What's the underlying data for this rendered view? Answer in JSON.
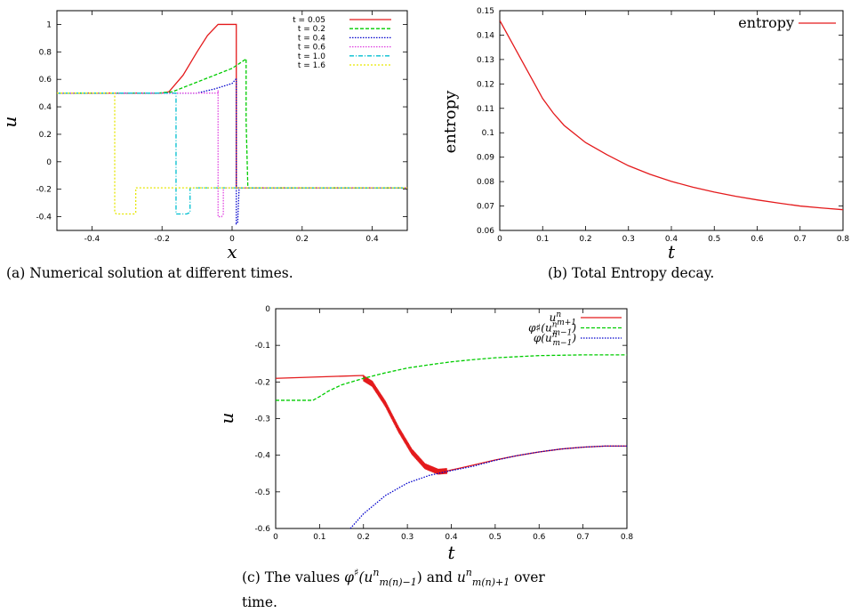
{
  "colors": {
    "red": "#e41a1c",
    "green": "#00cc00",
    "blue": "#0000cc",
    "magenta": "#e040e0",
    "cyan": "#00bfd0",
    "yellow": "#e6e600"
  },
  "captions": {
    "a": "(a)  Numerical solution at different times.",
    "b": "(b)  Total Entropy decay.",
    "c_prefix": "(c)  The values ",
    "c_phi": "φ",
    "c_sharp": "♯",
    "c_u1": "(u",
    "c_n1": "n",
    "c_sub1": "m(n)−1",
    "c_mid": ")  and  ",
    "c_u2": "u",
    "c_n2": "n",
    "c_sub2": "m(n)+1",
    "c_suffix": "  over",
    "c_line2": "time."
  },
  "chart_data": [
    {
      "id": "a",
      "type": "line",
      "xlabel": "x",
      "ylabel": "u",
      "xlim": [
        -0.5,
        0.5
      ],
      "ylim": [
        -0.5,
        1.1
      ],
      "xticks": [
        "-0.4",
        "-0.2",
        "0",
        "0.2",
        "0.4"
      ],
      "xtick_values": [
        -0.4,
        -0.2,
        0,
        0.2,
        0.4
      ],
      "yticks": [
        "-0.4",
        "-0.2",
        "0",
        "0.2",
        "0.4",
        "0.6",
        "0.8",
        "1"
      ],
      "ytick_values": [
        -0.4,
        -0.2,
        0,
        0.2,
        0.4,
        0.6,
        0.8,
        1
      ],
      "legend_position": "top-right",
      "series": [
        {
          "name": "t = 0.05",
          "color": "red",
          "dash": "",
          "x": [
            -0.5,
            -0.2,
            -0.18,
            -0.14,
            -0.1,
            -0.07,
            -0.04,
            -0.02,
            0.0,
            0.012,
            0.012,
            0.5
          ],
          "y": [
            0.5,
            0.5,
            0.51,
            0.63,
            0.8,
            0.92,
            1.0,
            1.0,
            1.0,
            1.0,
            -0.19,
            -0.19
          ]
        },
        {
          "name": "t = 0.2",
          "color": "green",
          "dash": "4,2",
          "x": [
            -0.5,
            -0.21,
            -0.17,
            -0.1,
            0.0,
            0.035,
            0.04,
            0.04,
            0.045,
            0.5
          ],
          "y": [
            0.5,
            0.5,
            0.51,
            0.58,
            0.68,
            0.74,
            0.75,
            0.3,
            -0.19,
            -0.19
          ]
        },
        {
          "name": "t = 0.4",
          "color": "blue",
          "dash": "1.5,1.5",
          "x": [
            -0.5,
            -0.1,
            -0.05,
            0.0,
            0.01,
            0.012,
            0.012,
            0.016,
            0.02,
            0.5
          ],
          "y": [
            0.5,
            0.5,
            0.53,
            0.57,
            0.6,
            0.6,
            -0.45,
            -0.44,
            -0.19,
            -0.19
          ]
        },
        {
          "name": "t = 0.6",
          "color": "magenta",
          "dash": "1.5,1.5",
          "x": [
            -0.5,
            -0.04,
            -0.04,
            -0.04,
            -0.03,
            -0.025,
            -0.025,
            0.5
          ],
          "y": [
            0.5,
            0.5,
            0.52,
            -0.4,
            -0.4,
            -0.38,
            -0.19,
            -0.19
          ]
        },
        {
          "name": "t = 1.0",
          "color": "cyan",
          "dash": "5,2,1,2",
          "x": [
            -0.5,
            -0.16,
            -0.16,
            -0.155,
            -0.13,
            -0.12,
            -0.12,
            0.5
          ],
          "y": [
            0.5,
            0.5,
            -0.38,
            -0.38,
            -0.38,
            -0.37,
            -0.19,
            -0.19
          ]
        },
        {
          "name": "t = 1.6",
          "color": "yellow",
          "dash": "2,2",
          "x": [
            -0.5,
            -0.335,
            -0.335,
            -0.33,
            -0.28,
            -0.275,
            -0.275,
            0.5
          ],
          "y": [
            0.5,
            0.5,
            -0.37,
            -0.38,
            -0.38,
            -0.37,
            -0.19,
            -0.19
          ]
        }
      ]
    },
    {
      "id": "b",
      "type": "line",
      "xlabel": "t",
      "ylabel": "entropy",
      "xlim": [
        0,
        0.8
      ],
      "ylim": [
        0.06,
        0.15
      ],
      "xticks": [
        "0",
        "0.1",
        "0.2",
        "0.3",
        "0.4",
        "0.5",
        "0.6",
        "0.7",
        "0.8"
      ],
      "xtick_values": [
        0,
        0.1,
        0.2,
        0.3,
        0.4,
        0.5,
        0.6,
        0.7,
        0.8
      ],
      "yticks": [
        "0.06",
        "0.07",
        "0.08",
        "0.09",
        "0.1",
        "0.11",
        "0.12",
        "0.13",
        "0.14",
        "0.15"
      ],
      "ytick_values": [
        0.06,
        0.07,
        0.08,
        0.09,
        0.1,
        0.11,
        0.12,
        0.13,
        0.14,
        0.15
      ],
      "legend_position": "top-right",
      "series": [
        {
          "name": "entropy",
          "color": "red",
          "dash": "",
          "x": [
            0,
            0.025,
            0.05,
            0.075,
            0.1,
            0.125,
            0.15,
            0.2,
            0.25,
            0.3,
            0.35,
            0.4,
            0.45,
            0.5,
            0.55,
            0.6,
            0.65,
            0.7,
            0.75,
            0.8
          ],
          "y": [
            0.146,
            0.138,
            0.13,
            0.122,
            0.114,
            0.108,
            0.103,
            0.096,
            0.091,
            0.0865,
            0.083,
            0.0801,
            0.0777,
            0.0757,
            0.074,
            0.0725,
            0.0712,
            0.07,
            0.0692,
            0.0685
          ]
        }
      ]
    },
    {
      "id": "c",
      "type": "line",
      "xlabel": "t",
      "ylabel": "u",
      "xlim": [
        0,
        0.8
      ],
      "ylim": [
        -0.6,
        0
      ],
      "xticks": [
        "0",
        "0.1",
        "0.2",
        "0.3",
        "0.4",
        "0.5",
        "0.6",
        "0.7",
        "0.8"
      ],
      "xtick_values": [
        0,
        0.1,
        0.2,
        0.3,
        0.4,
        0.5,
        0.6,
        0.7,
        0.8
      ],
      "yticks": [
        "-0.6",
        "-0.5",
        "-0.4",
        "-0.3",
        "-0.2",
        "-0.1",
        "0"
      ],
      "ytick_values": [
        -0.6,
        -0.5,
        -0.4,
        -0.3,
        -0.2,
        -0.1,
        0
      ],
      "legend_position": "top-right",
      "legend_labels": [
        {
          "base": "u",
          "sup": "n",
          "sub": "m+1"
        },
        {
          "base": "φ♯(u",
          "sup": "n",
          "sub": "m−1",
          "close": ")"
        },
        {
          "base": "φ(u",
          "sup": "n",
          "sub": "m−1",
          "close": ")"
        }
      ],
      "series": [
        {
          "name": "u^n_{m+1}",
          "color": "red",
          "dash": "",
          "noisy": true,
          "x": [
            0,
            0.2,
            0.22,
            0.25,
            0.28,
            0.31,
            0.34,
            0.37,
            0.39,
            0.42,
            0.45,
            0.5,
            0.55,
            0.6,
            0.65,
            0.7,
            0.75,
            0.8
          ],
          "y": [
            -0.19,
            -0.19,
            -0.205,
            -0.26,
            -0.33,
            -0.39,
            -0.43,
            -0.445,
            -0.443,
            -0.435,
            -0.427,
            -0.413,
            -0.401,
            -0.391,
            -0.383,
            -0.378,
            -0.375,
            -0.375
          ]
        },
        {
          "name": "φ♯(u^n_{m−1})",
          "color": "green",
          "dash": "4,2",
          "x": [
            0,
            0.085,
            0.1,
            0.12,
            0.15,
            0.2,
            0.25,
            0.3,
            0.35,
            0.4,
            0.45,
            0.5,
            0.55,
            0.6,
            0.65,
            0.7,
            0.75,
            0.8
          ],
          "y": [
            -0.25,
            -0.25,
            -0.24,
            -0.225,
            -0.208,
            -0.19,
            -0.175,
            -0.162,
            -0.153,
            -0.145,
            -0.139,
            -0.134,
            -0.131,
            -0.128,
            -0.127,
            -0.126,
            -0.126,
            -0.126
          ]
        },
        {
          "name": "φ(u^n_{m−1})",
          "color": "blue",
          "dash": "1.5,1.5",
          "x": [
            0.17,
            0.2,
            0.25,
            0.3,
            0.35,
            0.4,
            0.45,
            0.5,
            0.55,
            0.6,
            0.65,
            0.7,
            0.75,
            0.8
          ],
          "y": [
            -0.6,
            -0.56,
            -0.51,
            -0.476,
            -0.455,
            -0.442,
            -0.43,
            -0.414,
            -0.401,
            -0.391,
            -0.383,
            -0.378,
            -0.375,
            -0.375
          ]
        }
      ]
    }
  ]
}
